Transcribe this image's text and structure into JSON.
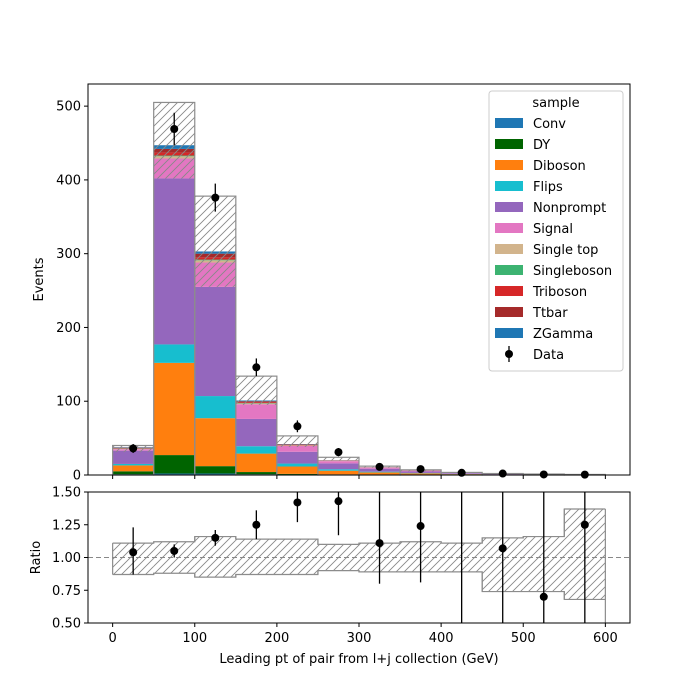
{
  "chart_data": [
    {
      "type": "stacked-histogram",
      "xlabel": "",
      "ylabel": "Events",
      "bin_edges": [
        0,
        50,
        100,
        150,
        200,
        250,
        300,
        350,
        400,
        450,
        500,
        550,
        600
      ],
      "x_range": [
        -30,
        630
      ],
      "ylim": [
        0,
        530
      ],
      "x_ticks": [
        "0",
        "100",
        "200",
        "300",
        "400",
        "500",
        "600"
      ],
      "y_ticks": [
        "0",
        "100",
        "200",
        "300",
        "400",
        "500"
      ],
      "legend_title": "sample",
      "legend_position": "upper right",
      "series": [
        {
          "name": "Conv",
          "color": "#1f77b4",
          "values": [
            1,
            2,
            2,
            1,
            0.5,
            0.3,
            0.2,
            0.1,
            0.1,
            0,
            0,
            0
          ]
        },
        {
          "name": "DY",
          "color": "#006400",
          "values": [
            4,
            25,
            10,
            3,
            1,
            0.5,
            0.3,
            0.2,
            0.1,
            0.1,
            0,
            0
          ]
        },
        {
          "name": "Diboson",
          "color": "#ff7f0e",
          "values": [
            8,
            125,
            65,
            25,
            10,
            5,
            3,
            2,
            1,
            0.5,
            0.3,
            0.2
          ]
        },
        {
          "name": "Flips",
          "color": "#17becf",
          "values": [
            2,
            25,
            30,
            10,
            4,
            2,
            1,
            0.5,
            0.3,
            0.1,
            0.1,
            0
          ]
        },
        {
          "name": "Nonprompt",
          "color": "#9467bd",
          "values": [
            18,
            225,
            148,
            37,
            16,
            8,
            4,
            2,
            1,
            0.5,
            0.3,
            0.2
          ]
        },
        {
          "name": "Signal",
          "color": "#e377c2",
          "values": [
            2,
            27,
            33,
            20,
            8,
            3,
            1.5,
            1,
            0.5,
            0.3,
            0.2,
            0.1
          ]
        },
        {
          "name": "Single top",
          "color": "#d2b48c",
          "values": [
            0.5,
            3,
            3,
            1,
            0.5,
            0.2,
            0.1,
            0.1,
            0,
            0,
            0,
            0
          ]
        },
        {
          "name": "Singleboson",
          "color": "#3cb371",
          "values": [
            0.3,
            1,
            1,
            0.5,
            0.2,
            0.1,
            0,
            0,
            0,
            0,
            0,
            0
          ]
        },
        {
          "name": "Triboson",
          "color": "#d62728",
          "values": [
            0.3,
            4,
            3,
            1,
            0.5,
            0.2,
            0.1,
            0.1,
            0,
            0,
            0,
            0
          ]
        },
        {
          "name": "Ttbar",
          "color": "#a52a2a",
          "values": [
            1,
            5,
            5,
            1.5,
            0.8,
            0.4,
            0.2,
            0.1,
            0.1,
            0,
            0,
            0
          ]
        },
        {
          "name": "ZGamma",
          "color": "#1f77b4",
          "values": [
            0.5,
            5,
            3,
            1,
            0.4,
            0.2,
            0.1,
            0.1,
            0,
            0,
            0,
            0
          ]
        }
      ],
      "uncertainty_band": {
        "lower": [
          31,
          402,
          255,
          95,
          38,
          20,
          10,
          5,
          2.8,
          1.3,
          1,
          0.35
        ],
        "upper": [
          40,
          505,
          378,
          134,
          53,
          24,
          12,
          7,
          3.5,
          2,
          1.3,
          0.75
        ]
      },
      "data": {
        "name": "Data",
        "x": [
          25,
          75,
          125,
          175,
          225,
          275,
          325,
          375,
          425,
          475,
          525,
          575
        ],
        "y": [
          36,
          469,
          376,
          146,
          66,
          31,
          11,
          8,
          3,
          2,
          0.7,
          0.5
        ],
        "err": [
          6,
          22,
          19,
          12,
          8,
          5.6,
          3.3,
          2.8,
          1.7,
          1.4,
          0.8,
          0.7
        ]
      }
    },
    {
      "type": "ratio",
      "xlabel": "Leading pt of pair from l+j collection (GeV)",
      "ylabel": "Ratio",
      "bin_edges": [
        0,
        50,
        100,
        150,
        200,
        250,
        300,
        350,
        400,
        450,
        500,
        550,
        600
      ],
      "x_range": [
        -30,
        630
      ],
      "ylim": [
        0.5,
        1.5
      ],
      "reference_line": 1.0,
      "x_ticks": [
        "0",
        "100",
        "200",
        "300",
        "400",
        "500",
        "600"
      ],
      "y_ticks": [
        "0.50",
        "0.75",
        "1.00",
        "1.25",
        "1.50"
      ],
      "band_lower": [
        0.87,
        0.88,
        0.85,
        0.87,
        0.87,
        0.9,
        0.89,
        0.89,
        0.89,
        0.74,
        0.74,
        0.68
      ],
      "band_upper": [
        1.11,
        1.12,
        1.16,
        1.14,
        1.14,
        1.1,
        1.11,
        1.12,
        1.11,
        1.15,
        1.16,
        1.37
      ],
      "points": {
        "x": [
          25,
          75,
          125,
          175,
          225,
          275,
          325,
          375,
          425,
          475,
          525,
          575
        ],
        "y": [
          1.04,
          1.05,
          1.15,
          1.25,
          1.42,
          1.43,
          1.11,
          1.24,
          1.0,
          1.07,
          0.7,
          1.25
        ],
        "err_up": [
          0.19,
          0.05,
          0.06,
          0.11,
          0.15,
          0.26,
          0.5,
          0.6,
          1.0,
          1.0,
          1.0,
          1.0
        ],
        "err_down": [
          0.17,
          0.05,
          0.06,
          0.11,
          0.15,
          0.26,
          0.31,
          0.43,
          0.6,
          1.0,
          0.7,
          1.0
        ]
      }
    }
  ]
}
